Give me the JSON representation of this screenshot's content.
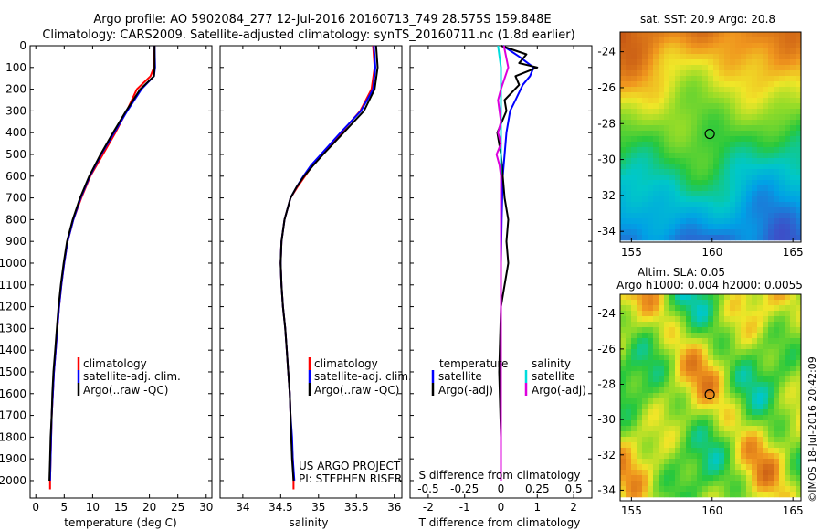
{
  "header": {
    "line1": "Argo profile: AO 5902084_277 12-Jul-2016 20160713_749 28.575S 159.848E",
    "line2": "Climatology: CARS2009. Satellite-adjusted climatology: synTS_20160711.nc (1.8d earlier)"
  },
  "colors": {
    "climatology": "#ff0000",
    "satellite": "#0000ff",
    "argo": "#000000",
    "sat_salinity": "#00dddd",
    "argo_salinity": "#dd00dd"
  },
  "chart_data": [
    {
      "type": "line",
      "id": "temperature",
      "xlabel": "temperature (deg C)",
      "ylabel": "",
      "xlim": [
        -1,
        31
      ],
      "ylim": [
        2080,
        0
      ],
      "xticks": [
        0,
        5,
        10,
        15,
        20,
        25,
        30
      ],
      "yticks": [
        0,
        100,
        200,
        300,
        400,
        500,
        600,
        700,
        800,
        900,
        1000,
        1100,
        1200,
        1300,
        1400,
        1500,
        1600,
        1700,
        1800,
        1900,
        2000
      ],
      "legend": [
        "climatology",
        "satellite-adj. clim.",
        "Argo(..raw -QC)"
      ],
      "series": [
        {
          "name": "climatology",
          "color": "#ff0000",
          "depth": [
            0,
            100,
            140,
            200,
            300,
            400,
            500,
            600,
            700,
            800,
            900,
            1000,
            1100,
            1200,
            1300,
            1400,
            1500,
            1600,
            1700,
            1800,
            1900,
            2000,
            2040
          ],
          "values": [
            20.9,
            20.8,
            20.2,
            17.8,
            16.0,
            14.0,
            11.8,
            9.6,
            8.0,
            6.6,
            5.6,
            5.0,
            4.5,
            4.1,
            3.8,
            3.5,
            3.2,
            3.0,
            2.8,
            2.7,
            2.6,
            2.5,
            2.5
          ]
        },
        {
          "name": "satellite-adj. clim.",
          "color": "#0000ff",
          "depth": [
            0,
            100,
            140,
            200,
            300,
            400,
            500,
            600,
            700,
            800,
            900,
            1000,
            1100,
            1200,
            1300,
            1400,
            1500,
            1600,
            1700,
            1800,
            1900,
            2000
          ],
          "values": [
            20.9,
            21.0,
            20.8,
            18.6,
            16.1,
            13.8,
            11.5,
            9.5,
            7.9,
            6.6,
            5.6,
            5.0,
            4.5,
            4.1,
            3.8,
            3.5,
            3.2,
            3.0,
            2.8,
            2.7,
            2.6,
            2.5
          ]
        },
        {
          "name": "Argo(..raw -QC)",
          "color": "#000000",
          "depth": [
            0,
            100,
            140,
            200,
            300,
            400,
            500,
            600,
            700,
            800,
            900,
            1000,
            1100,
            1200,
            1300,
            1400,
            1500,
            1600,
            1700,
            1800,
            1900,
            2000
          ],
          "values": [
            20.9,
            20.9,
            20.8,
            18.4,
            15.9,
            13.6,
            11.4,
            9.4,
            7.8,
            6.5,
            5.5,
            4.9,
            4.4,
            4.0,
            3.7,
            3.4,
            3.1,
            2.9,
            2.8,
            2.6,
            2.5,
            2.4
          ]
        }
      ]
    },
    {
      "type": "line",
      "id": "salinity",
      "xlabel": "salinity",
      "ylabel": "",
      "xlim": [
        33.7,
        36.1
      ],
      "ylim": [
        2080,
        0
      ],
      "xticks": [
        34,
        34.5,
        35,
        35.5,
        36
      ],
      "xtick_labels": [
        "34",
        "34.5",
        "35",
        "35.5",
        "36"
      ],
      "legend": [
        "climatology",
        "satellite-adj. clim.",
        "Argo(..raw -QC)"
      ],
      "series": [
        {
          "name": "climatology",
          "color": "#ff0000",
          "depth": [
            0,
            100,
            200,
            300,
            400,
            500,
            550,
            600,
            650,
            700,
            800,
            900,
            1000,
            1100,
            1200,
            1300,
            1400,
            1500,
            1600,
            1700,
            1800,
            1900,
            2000,
            2040
          ],
          "values": [
            35.72,
            35.74,
            35.7,
            35.55,
            35.3,
            35.05,
            34.92,
            34.82,
            34.72,
            34.63,
            34.55,
            34.51,
            34.5,
            34.51,
            34.53,
            34.56,
            34.58,
            34.6,
            34.62,
            34.63,
            34.64,
            34.66,
            34.67,
            34.67
          ]
        },
        {
          "name": "satellite-adj. clim.",
          "color": "#0000ff",
          "depth": [
            0,
            100,
            200,
            300,
            400,
            500,
            550,
            600,
            650,
            700,
            800,
            900,
            1000,
            1100,
            1200,
            1300,
            1400,
            1500,
            1600,
            1700,
            1800,
            1900,
            2000
          ],
          "values": [
            35.73,
            35.75,
            35.72,
            35.56,
            35.29,
            35.03,
            34.9,
            34.8,
            34.71,
            34.63,
            34.55,
            34.51,
            34.5,
            34.51,
            34.53,
            34.56,
            34.58,
            34.6,
            34.62,
            34.63,
            34.65,
            34.66,
            34.68
          ]
        },
        {
          "name": "Argo(..raw -QC)",
          "color": "#000000",
          "depth": [
            0,
            100,
            200,
            300,
            400,
            500,
            550,
            600,
            650,
            700,
            800,
            900,
            1000,
            1100,
            1200,
            1300,
            1400,
            1500,
            1600,
            1700,
            1800,
            1900,
            2000
          ],
          "values": [
            35.76,
            35.78,
            35.74,
            35.6,
            35.33,
            35.06,
            34.93,
            34.81,
            34.71,
            34.63,
            34.55,
            34.51,
            34.5,
            34.51,
            34.53,
            34.56,
            34.58,
            34.6,
            34.62,
            34.63,
            34.64,
            34.65,
            34.67
          ]
        }
      ],
      "annotations": [
        "US ARGO PROJECT",
        "PI: STEPHEN RISER"
      ]
    },
    {
      "type": "line",
      "id": "differences",
      "xlabel": "T difference from climatology",
      "top_axis_label": "S difference from climatology",
      "xlim": [
        -2.5,
        2.5
      ],
      "ylim": [
        2080,
        0
      ],
      "xticks": [
        -2,
        -1,
        0,
        1,
        2
      ],
      "top_xticks": [
        -0.5,
        -0.25,
        0,
        0.25,
        0.5
      ],
      "top_xtick_labels": [
        "-0.5",
        "-0.25",
        "0",
        "0.25",
        "0.5"
      ],
      "legend_temperature": {
        "title": "temperature",
        "items": [
          "satellite",
          "Argo(-adj)"
        ]
      },
      "legend_salinity": {
        "title": "salinity",
        "items": [
          "satellite",
          "Argo(-adj)"
        ]
      },
      "series": [
        {
          "name": "T satellite",
          "color": "#0000ff",
          "depth": [
            0,
            50,
            100,
            140,
            180,
            250,
            300,
            400,
            500,
            600,
            800,
            1000,
            1500,
            2000
          ],
          "values": [
            0.05,
            0.5,
            0.9,
            0.8,
            0.6,
            0.4,
            0.25,
            0.15,
            0.1,
            0.05,
            0.02,
            0.0,
            0.0,
            0.0
          ]
        },
        {
          "name": "T Argo(-adj)",
          "color": "#000000",
          "depth": [
            0,
            40,
            80,
            100,
            140,
            180,
            250,
            300,
            400,
            450,
            500,
            600,
            700,
            800,
            900,
            1000,
            1100,
            1200,
            1500,
            1800,
            2000
          ],
          "values": [
            0.0,
            0.7,
            0.5,
            1.0,
            0.4,
            0.5,
            0.1,
            0.15,
            -0.1,
            -0.05,
            0.0,
            0.05,
            0.1,
            0.2,
            0.15,
            0.2,
            0.1,
            0.0,
            -0.05,
            0.0,
            0.0
          ]
        },
        {
          "name": "S satellite",
          "color": "#00dddd",
          "depth": [
            0,
            50,
            100,
            200,
            300,
            400,
            500,
            700,
            1000,
            1500,
            2000
          ],
          "values": [
            -0.02,
            -0.01,
            0.0,
            0.0,
            0.0,
            0.0,
            0.0,
            0.0,
            0.0,
            0.0,
            0.0
          ]
        },
        {
          "name": "S Argo(-adj)",
          "color": "#dd00dd",
          "depth": [
            0,
            100,
            200,
            250,
            300,
            350,
            400,
            450,
            500,
            550,
            600,
            700,
            1000,
            2000
          ],
          "values": [
            0.02,
            0.05,
            0.0,
            -0.02,
            -0.01,
            0.0,
            -0.02,
            0.0,
            -0.03,
            -0.01,
            0.0,
            0.0,
            0.0,
            0.0
          ]
        }
      ]
    }
  ],
  "maps": [
    {
      "id": "sst",
      "title": "sat. SST: 20.9 Argo: 20.8",
      "xticks": [
        155,
        160,
        165
      ],
      "yticks": [
        -24,
        -26,
        -28,
        -30,
        -32,
        -34
      ],
      "colorscale": "warm"
    },
    {
      "id": "sla",
      "title1": "Altim. SLA: 0.05",
      "title2": "Argo h1000: 0.004 h2000: 0.0055",
      "xticks": [
        155,
        160,
        165
      ],
      "yticks": [
        -24,
        -26,
        -28,
        -30,
        -32,
        -34
      ],
      "colorscale": "blobs"
    }
  ],
  "map_geo": {
    "lon": [
      154.3,
      165.5
    ],
    "lat": [
      -34.6,
      -22.9
    ],
    "argo_lon": 159.85,
    "argo_lat": -28.575
  },
  "watermark": "©IMOS 18-Jul-2016 20:42:09"
}
